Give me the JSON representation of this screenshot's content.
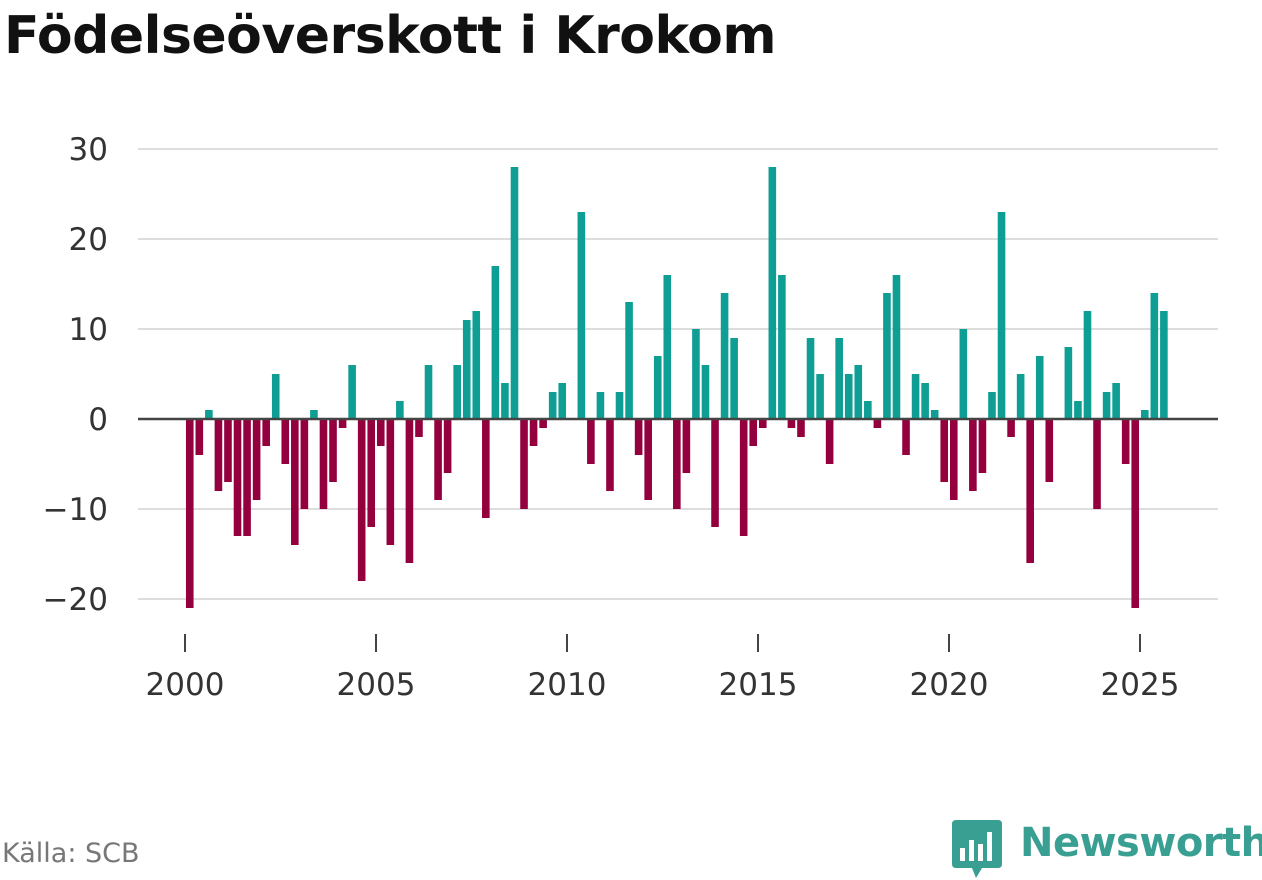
{
  "chart_data": {
    "type": "bar",
    "title": "Födelseöverskott i Krokom",
    "xlabel": "",
    "ylabel": "",
    "ylim": [
      -23,
      30
    ],
    "y_ticks": [
      30,
      20,
      10,
      0,
      -10,
      -20
    ],
    "y_tick_labels": [
      "30",
      "20",
      "10",
      "0",
      "−10",
      "−20"
    ],
    "x_ticks": [
      2000,
      2005,
      2010,
      2015,
      2020,
      2025
    ],
    "x_tick_labels": [
      "2000",
      "2005",
      "2010",
      "2015",
      "2020",
      "2025"
    ],
    "x_start": 2000.125,
    "x_step": 0.25,
    "positive_color": "#0e9e94",
    "negative_color": "#94003e",
    "grid": true,
    "values": [
      -21,
      -4,
      1,
      -8,
      -7,
      -13,
      -13,
      -9,
      -3,
      5,
      -5,
      -14,
      -10,
      1,
      -10,
      -7,
      -1,
      6,
      -18,
      -12,
      -3,
      -14,
      2,
      -16,
      -2,
      6,
      -9,
      -6,
      6,
      11,
      12,
      -11,
      17,
      4,
      28,
      -10,
      -3,
      -1,
      3,
      4,
      0,
      23,
      -5,
      3,
      -8,
      3,
      13,
      -4,
      -9,
      7,
      16,
      -10,
      -6,
      10,
      6,
      -12,
      14,
      9,
      -13,
      -3,
      -1,
      28,
      16,
      -1,
      -2,
      9,
      5,
      -5,
      9,
      5,
      6,
      2,
      -1,
      14,
      16,
      -4,
      5,
      4,
      1,
      -7,
      -9,
      10,
      -8,
      -6,
      3,
      23,
      -2,
      5,
      -16,
      7,
      -7,
      0,
      8,
      2,
      12,
      -10,
      3,
      4,
      -5,
      -21,
      1,
      14,
      12
    ]
  },
  "source": "Källa: SCB",
  "brand": {
    "name": "Newsworthy",
    "icon": "newsworthy-logo-icon",
    "color": "#3a9f93"
  }
}
